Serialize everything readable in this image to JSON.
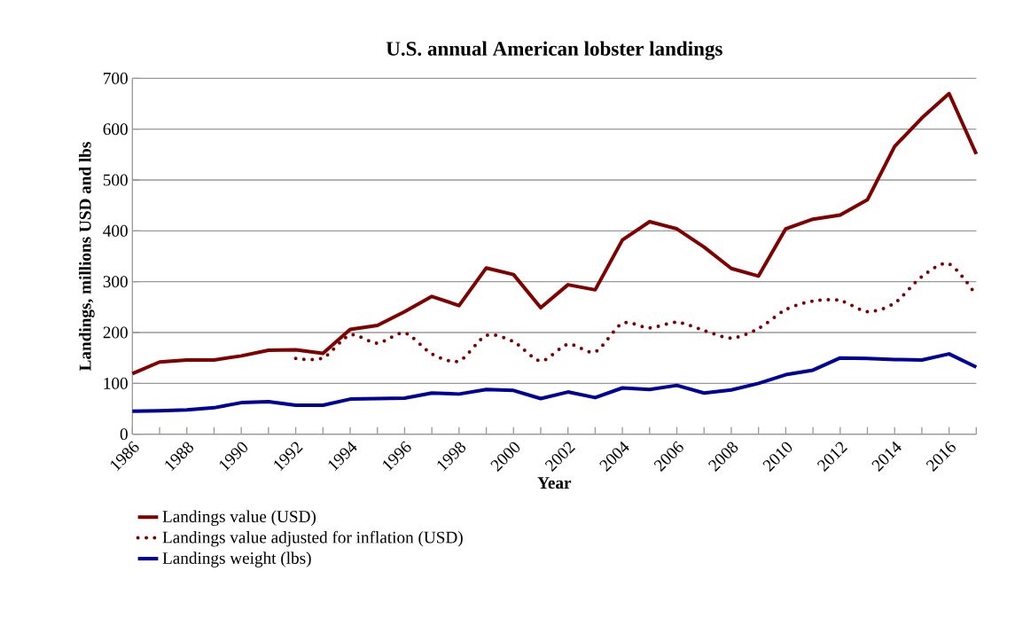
{
  "chart_data": {
    "type": "line",
    "title": "U.S. annual American lobster landings",
    "xlabel": "Year",
    "ylabel": "Landings, millions USD and lbs",
    "x": [
      1986,
      1987,
      1988,
      1989,
      1990,
      1991,
      1992,
      1993,
      1994,
      1995,
      1996,
      1997,
      1998,
      1999,
      2000,
      2001,
      2002,
      2003,
      2004,
      2005,
      2006,
      2007,
      2008,
      2009,
      2010,
      2011,
      2012,
      2013,
      2014,
      2015,
      2016,
      2017
    ],
    "series": [
      {
        "name": "Landings value (USD)",
        "color": "#800000",
        "line_style": "solid",
        "values": [
          119,
          142,
          146,
          146,
          154,
          165,
          166,
          159,
          206,
          214,
          241,
          271,
          253,
          327,
          314,
          249,
          294,
          284,
          382,
          418,
          404,
          368,
          326,
          311,
          404,
          423,
          431,
          461,
          566,
          622,
          670,
          551
        ]
      },
      {
        "name": "Landings value adjusted for inflation (USD)",
        "color": "#800000",
        "line_style": "dotted",
        "values": [
          null,
          null,
          null,
          null,
          null,
          null,
          149,
          150,
          195,
          179,
          199,
          158,
          144,
          194,
          182,
          144,
          177,
          162,
          218,
          209,
          220,
          204,
          189,
          208,
          245,
          262,
          263,
          241,
          258,
          310,
          335,
          273
        ]
      },
      {
        "name": "Landings weight (lbs)",
        "color": "#000099",
        "line_style": "solid",
        "values": [
          45,
          46,
          48,
          52,
          62,
          64,
          57,
          57,
          69,
          70,
          71,
          81,
          79,
          88,
          86,
          70,
          83,
          72,
          91,
          88,
          96,
          81,
          87,
          100,
          117,
          126,
          150,
          149,
          147,
          146,
          158,
          132
        ]
      }
    ],
    "xlim": [
      1986,
      2017
    ],
    "xticks": [
      1986,
      {
        "value": 1987,
        "label": null
      },
      1988,
      {
        "value": 1989,
        "label": null
      },
      1990,
      {
        "value": 1991,
        "label": null
      },
      1992,
      {
        "value": 1993,
        "label": null
      },
      1994,
      {
        "value": 1995,
        "label": null
      },
      1996,
      {
        "value": 1997,
        "label": null
      },
      1998,
      {
        "value": 1999,
        "label": null
      },
      2000,
      {
        "value": 2001,
        "label": null
      },
      2002,
      {
        "value": 2003,
        "label": null
      },
      2004,
      {
        "value": 2005,
        "label": null
      },
      2006,
      {
        "value": 2007,
        "label": null
      },
      2008,
      {
        "value": 2009,
        "label": null
      },
      2010,
      {
        "value": 2011,
        "label": null
      },
      2012,
      {
        "value": 2013,
        "label": null
      },
      2014,
      {
        "value": 2015,
        "label": null
      },
      2016,
      {
        "value": 2017,
        "label": null
      }
    ],
    "ylim": [
      0,
      700
    ],
    "yticks": [
      0,
      100,
      200,
      300,
      400,
      500,
      600,
      700
    ],
    "grid": "y",
    "legend": "bottom",
    "marker": "none"
  }
}
